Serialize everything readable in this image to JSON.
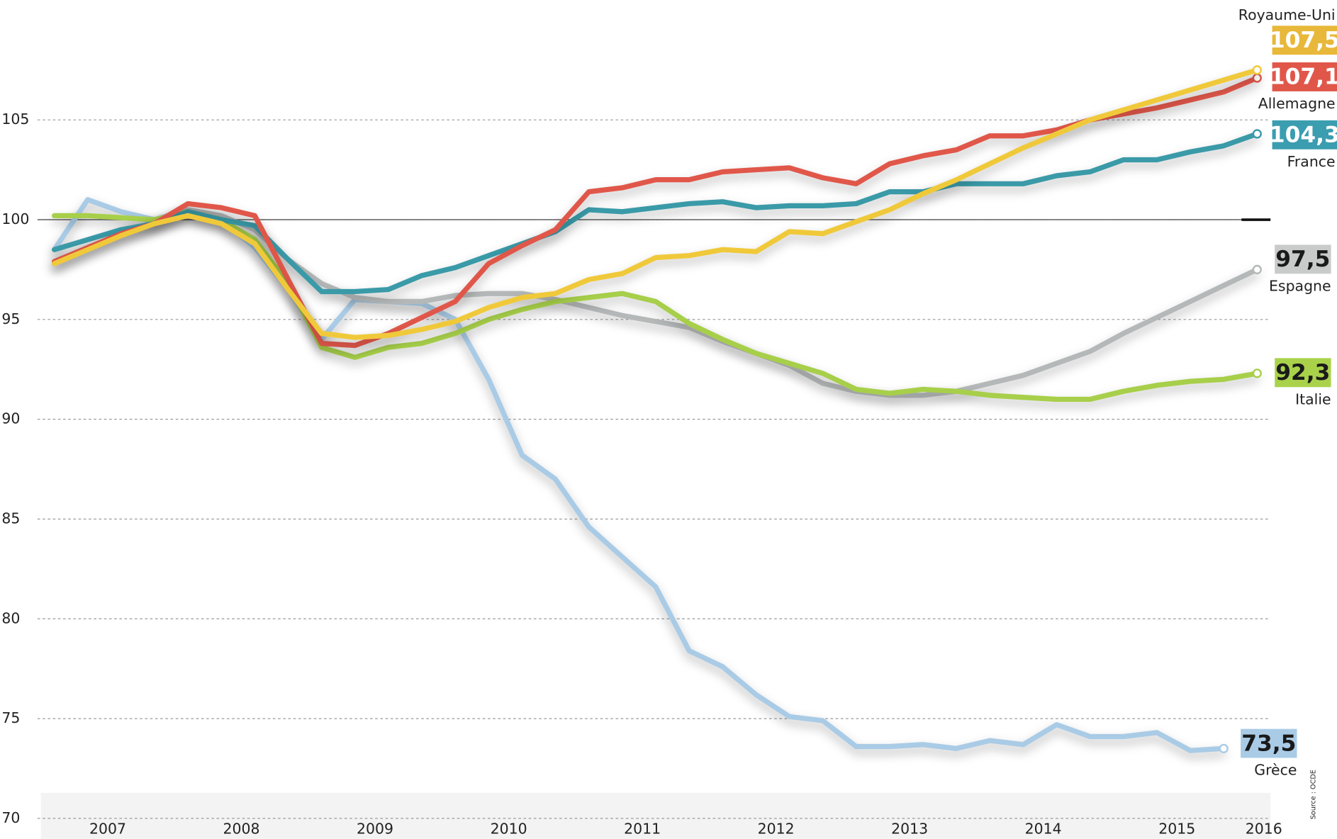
{
  "chart_data": {
    "type": "line",
    "x": [
      2007.1,
      2007.35,
      2007.6,
      2007.85,
      2008.1,
      2008.35,
      2008.6,
      2008.85,
      2009.1,
      2009.35,
      2009.6,
      2009.85,
      2010.1,
      2010.35,
      2010.6,
      2010.85,
      2011.1,
      2011.35,
      2011.6,
      2011.85,
      2012.1,
      2012.35,
      2012.6,
      2012.85,
      2013.1,
      2013.35,
      2013.6,
      2013.85,
      2014.1,
      2014.35,
      2014.6,
      2014.85,
      2015.1,
      2015.35,
      2015.6,
      2015.85,
      2016.1
    ],
    "xlim": [
      2007,
      2016.2
    ],
    "xticks": [
      {
        "value": 2007.5,
        "label": "2007"
      },
      {
        "value": 2008.5,
        "label": "2008"
      },
      {
        "value": 2009.5,
        "label": "2009"
      },
      {
        "value": 2010.5,
        "label": "2010"
      },
      {
        "value": 2011.5,
        "label": "2011"
      },
      {
        "value": 2012.5,
        "label": "2012"
      },
      {
        "value": 2013.5,
        "label": "2013"
      },
      {
        "value": 2014.5,
        "label": "2014"
      },
      {
        "value": 2015.5,
        "label": "2015"
      },
      {
        "value": 2016.15,
        "label": "2016"
      }
    ],
    "ylim": [
      70,
      111
    ],
    "yticks": [
      70,
      75,
      80,
      85,
      90,
      95,
      100,
      105
    ],
    "grid": true,
    "reference_line": 100,
    "source": "Source : OCDE",
    "series": [
      {
        "name": "Grèce",
        "color": "#a9cbe6",
        "label_color": "#a9cbe6",
        "label_text_color": "#1a1a1a",
        "values": [
          98.5,
          101.0,
          100.4,
          100.0,
          100.5,
          100.0,
          98.6,
          96.5,
          94.0,
          96.0,
          95.9,
          95.8,
          95.0,
          92.0,
          88.2,
          87.0,
          84.6,
          83.1,
          81.6,
          78.4,
          77.6,
          76.2,
          75.1,
          74.9,
          73.6,
          73.6,
          73.7,
          73.5,
          73.9,
          73.7,
          74.7,
          74.1,
          74.1,
          74.3,
          73.4,
          73.5,
          null
        ],
        "value_labels": [
          null,
          null,
          null,
          null,
          null,
          null,
          null,
          null,
          null,
          null,
          null,
          null,
          null,
          null,
          null,
          null,
          null,
          null,
          null,
          null,
          null,
          null,
          null,
          null,
          null,
          null,
          null,
          null,
          null,
          null,
          null,
          null,
          null,
          null,
          null,
          "73,5",
          null
        ]
      },
      {
        "name": "Espagne",
        "color": "#b5b8b8",
        "label_color": "#c9cbcb",
        "label_text_color": "#1a1a1a",
        "values": [
          97.8,
          98.6,
          99.3,
          99.9,
          100.5,
          100.2,
          99.5,
          98.0,
          96.8,
          96.1,
          95.9,
          95.9,
          96.2,
          96.3,
          96.3,
          96.0,
          95.6,
          95.2,
          94.9,
          94.6,
          93.9,
          93.3,
          92.7,
          91.8,
          91.4,
          91.2,
          91.2,
          91.4,
          91.8,
          92.2,
          92.8,
          93.4,
          94.3,
          95.1,
          95.9,
          96.7,
          97.5
        ],
        "value_labels": [
          null,
          null,
          null,
          null,
          null,
          null,
          null,
          null,
          null,
          null,
          null,
          null,
          null,
          null,
          null,
          null,
          null,
          null,
          null,
          null,
          null,
          null,
          null,
          null,
          null,
          null,
          null,
          null,
          null,
          null,
          null,
          null,
          null,
          null,
          null,
          null,
          "97,5"
        ]
      },
      {
        "name": "Italie",
        "color": "#a7cf4a",
        "label_color": "#a9d24a",
        "label_text_color": "#1a1a1a",
        "values": [
          100.2,
          100.2,
          100.1,
          100.0,
          100.4,
          100.0,
          99.0,
          96.8,
          93.6,
          93.1,
          93.6,
          93.8,
          94.3,
          95.0,
          95.5,
          95.9,
          96.1,
          96.3,
          95.9,
          94.8,
          94.0,
          93.3,
          92.8,
          92.3,
          91.5,
          91.3,
          91.5,
          91.4,
          91.2,
          91.1,
          91.0,
          91.0,
          91.4,
          91.7,
          91.9,
          92.0,
          92.3
        ],
        "value_labels": [
          null,
          null,
          null,
          null,
          null,
          null,
          null,
          null,
          null,
          null,
          null,
          null,
          null,
          null,
          null,
          null,
          null,
          null,
          null,
          null,
          null,
          null,
          null,
          null,
          null,
          null,
          null,
          null,
          null,
          null,
          null,
          null,
          null,
          null,
          null,
          null,
          "92,3"
        ]
      },
      {
        "name": "France",
        "color": "#3a9aa8",
        "label_color": "#3b9db0",
        "label_text_color": "#ffffff",
        "values": [
          98.5,
          99.0,
          99.5,
          99.8,
          100.4,
          100.0,
          99.7,
          98.0,
          96.4,
          96.4,
          96.5,
          97.2,
          97.6,
          98.2,
          98.8,
          99.4,
          100.5,
          100.4,
          100.6,
          100.8,
          100.9,
          100.6,
          100.7,
          100.7,
          100.8,
          101.4,
          101.4,
          101.8,
          101.8,
          101.8,
          102.2,
          102.4,
          103.0,
          103.0,
          103.4,
          103.7,
          104.3
        ],
        "value_labels": [
          null,
          null,
          null,
          null,
          null,
          null,
          null,
          null,
          null,
          null,
          null,
          null,
          null,
          null,
          null,
          null,
          null,
          null,
          null,
          null,
          null,
          null,
          null,
          null,
          null,
          null,
          null,
          null,
          null,
          null,
          null,
          null,
          null,
          null,
          null,
          null,
          "104,3"
        ]
      },
      {
        "name": "Allemagne",
        "color": "#e0574a",
        "label_color": "#e0574a",
        "label_text_color": "#ffffff",
        "values": [
          97.9,
          98.6,
          99.3,
          99.8,
          100.8,
          100.6,
          100.2,
          97.0,
          93.8,
          93.7,
          94.3,
          95.1,
          95.9,
          97.8,
          98.7,
          99.5,
          101.4,
          101.6,
          102.0,
          102.0,
          102.4,
          102.5,
          102.6,
          102.1,
          101.8,
          102.8,
          103.2,
          103.5,
          104.2,
          104.2,
          104.5,
          105.0,
          105.3,
          105.6,
          106.0,
          106.4,
          107.1
        ],
        "value_labels": [
          null,
          null,
          null,
          null,
          null,
          null,
          null,
          null,
          null,
          null,
          null,
          null,
          null,
          null,
          null,
          null,
          null,
          null,
          null,
          null,
          null,
          null,
          null,
          null,
          null,
          null,
          null,
          null,
          null,
          null,
          null,
          null,
          null,
          null,
          null,
          null,
          "107,1"
        ]
      },
      {
        "name": "Royaume-Uni",
        "color": "#f0c93a",
        "label_color": "#e8b83a",
        "label_text_color": "#ffffff",
        "values": [
          97.8,
          98.5,
          99.2,
          99.8,
          100.2,
          99.8,
          98.8,
          96.5,
          94.3,
          94.1,
          94.2,
          94.5,
          94.9,
          95.6,
          96.1,
          96.3,
          97.0,
          97.3,
          98.1,
          98.2,
          98.5,
          98.4,
          99.4,
          99.3,
          99.9,
          100.5,
          101.3,
          102.0,
          102.8,
          103.6,
          104.3,
          105.0,
          105.5,
          106.0,
          106.5,
          107.0,
          107.5
        ],
        "value_labels": [
          null,
          null,
          null,
          null,
          null,
          null,
          null,
          null,
          null,
          null,
          null,
          null,
          null,
          null,
          null,
          null,
          null,
          null,
          null,
          null,
          null,
          null,
          null,
          null,
          null,
          null,
          null,
          null,
          null,
          null,
          null,
          null,
          null,
          null,
          null,
          null,
          "107,5"
        ]
      }
    ]
  }
}
